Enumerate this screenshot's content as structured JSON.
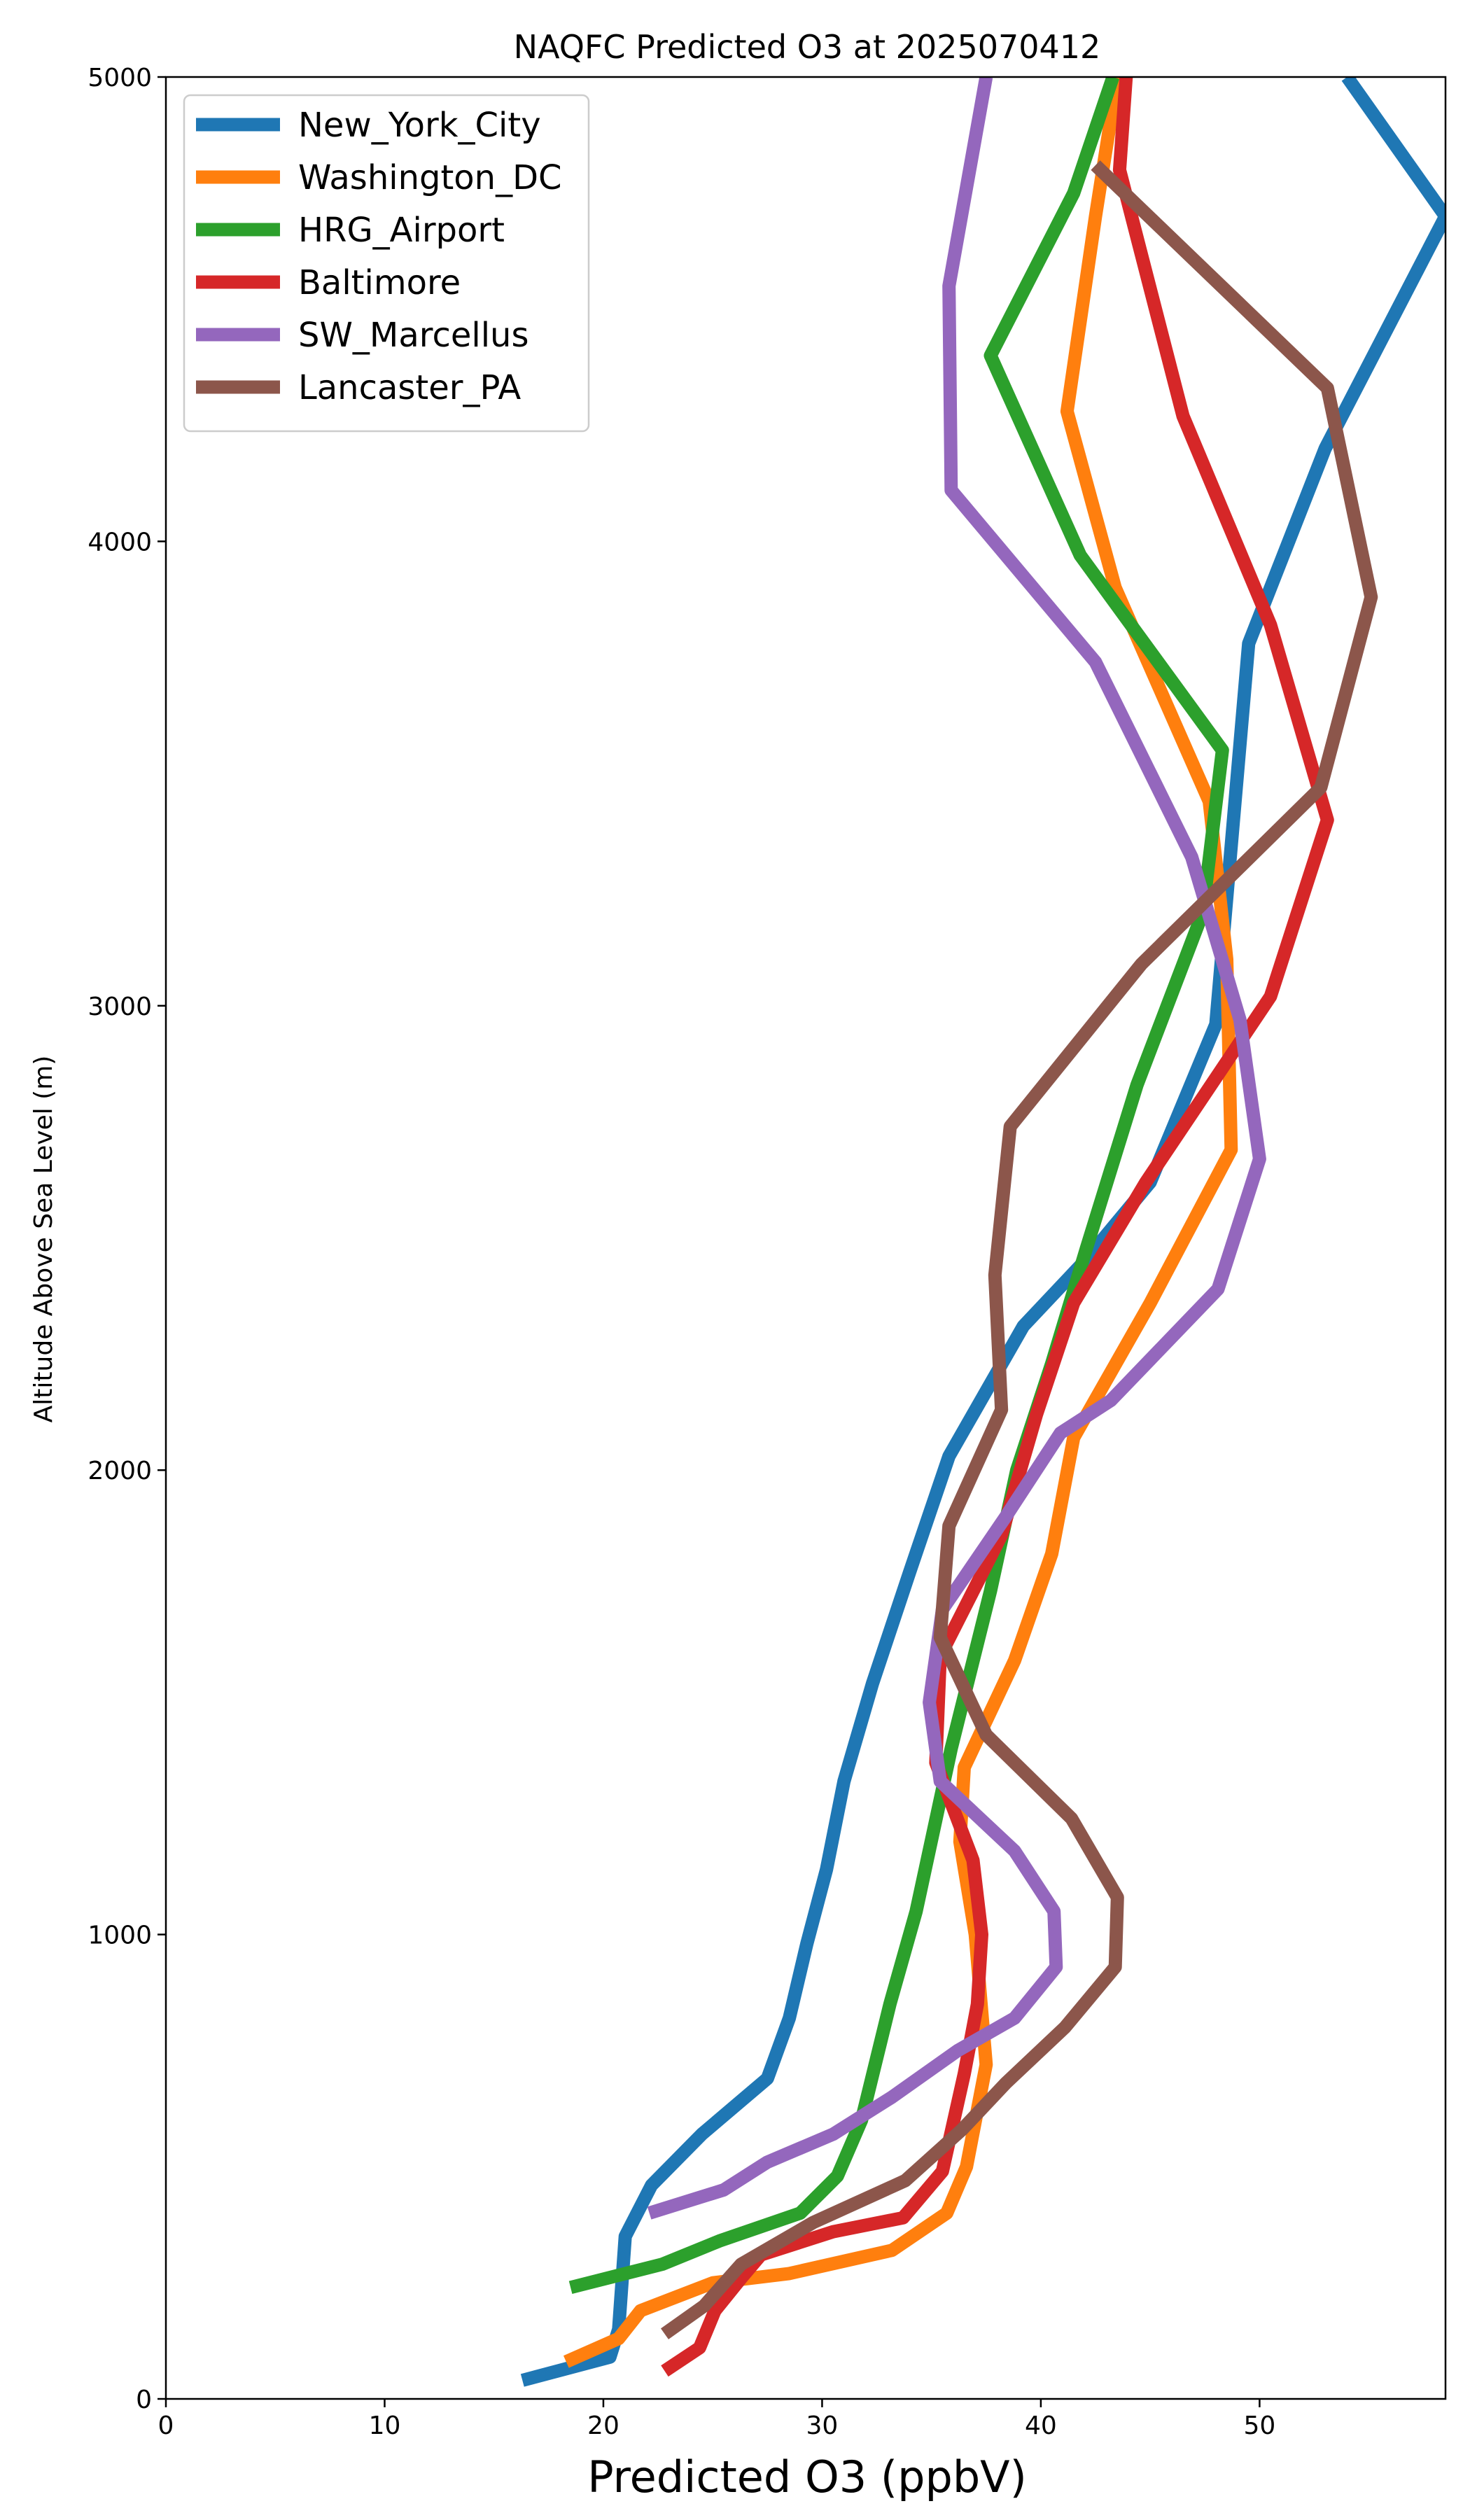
{
  "chart_data": {
    "type": "line",
    "title": "NAQFC Predicted O3 at 2025070412",
    "xlabel": "Predicted O3 (ppbV)",
    "ylabel": "Altitude Above Sea Level (m)",
    "xlim": [
      0,
      58.5
    ],
    "ylim": [
      0,
      5000
    ],
    "xticks": [
      0,
      10,
      20,
      30,
      40,
      50
    ],
    "yticks": [
      0,
      1000,
      2000,
      3000,
      4000,
      5000
    ],
    "grid": false,
    "legend_position": "upper-left",
    "series": [
      {
        "name": "New_York_City",
        "color": "#1f77b4",
        "points": [
          [
            16.3,
            40
          ],
          [
            20.3,
            90
          ],
          [
            20.7,
            150
          ],
          [
            21,
            350
          ],
          [
            22.2,
            460
          ],
          [
            24.5,
            570
          ],
          [
            27.5,
            690
          ],
          [
            28.5,
            820
          ],
          [
            29.3,
            980
          ],
          [
            30.2,
            1140
          ],
          [
            31,
            1330
          ],
          [
            32.3,
            1540
          ],
          [
            34,
            1780
          ],
          [
            35.8,
            2030
          ],
          [
            39.2,
            2310
          ],
          [
            42,
            2450
          ],
          [
            45,
            2620
          ],
          [
            48,
            2960
          ],
          [
            49.5,
            3780
          ],
          [
            53,
            4200
          ],
          [
            58.5,
            4700
          ],
          [
            54,
            5000
          ]
        ]
      },
      {
        "name": "Washington_DC",
        "color": "#ff7f0e",
        "points": [
          [
            18.3,
            80
          ],
          [
            20.7,
            130
          ],
          [
            21.7,
            190
          ],
          [
            25,
            250
          ],
          [
            28.5,
            270
          ],
          [
            33.2,
            320
          ],
          [
            35.7,
            400
          ],
          [
            36.6,
            500
          ],
          [
            37.5,
            720
          ],
          [
            37,
            1000
          ],
          [
            36.3,
            1200
          ],
          [
            36.5,
            1360
          ],
          [
            38.8,
            1590
          ],
          [
            40.5,
            1820
          ],
          [
            41.5,
            2070
          ],
          [
            45,
            2360
          ],
          [
            48.7,
            2690
          ],
          [
            48.5,
            3100
          ],
          [
            47.7,
            3440
          ],
          [
            43.4,
            3900
          ],
          [
            41.2,
            4280
          ],
          [
            42.5,
            4700
          ],
          [
            43.5,
            5000
          ]
        ]
      },
      {
        "name": "HRG_Airport",
        "color": "#2ca02c",
        "points": [
          [
            18.5,
            240
          ],
          [
            22.7,
            290
          ],
          [
            25.3,
            340
          ],
          [
            29,
            400
          ],
          [
            30.7,
            480
          ],
          [
            31.8,
            600
          ],
          [
            33.1,
            850
          ],
          [
            34.3,
            1050
          ],
          [
            35.9,
            1400
          ],
          [
            37.7,
            1740
          ],
          [
            38.9,
            2000
          ],
          [
            40.5,
            2230
          ],
          [
            42.1,
            2480
          ],
          [
            44.4,
            2830
          ],
          [
            47.4,
            3200
          ],
          [
            48.3,
            3550
          ],
          [
            41.8,
            3970
          ],
          [
            37.7,
            4400
          ],
          [
            41.5,
            4750
          ],
          [
            43.3,
            5000
          ]
        ]
      },
      {
        "name": "Baltimore",
        "color": "#d62728",
        "points": [
          [
            22.8,
            60
          ],
          [
            24.4,
            110
          ],
          [
            25.1,
            190
          ],
          [
            26.3,
            260
          ],
          [
            27.2,
            310
          ],
          [
            30.5,
            360
          ],
          [
            33.7,
            390
          ],
          [
            35.5,
            490
          ],
          [
            36.5,
            700
          ],
          [
            37.1,
            850
          ],
          [
            37.3,
            1000
          ],
          [
            36.9,
            1160
          ],
          [
            35.2,
            1370
          ],
          [
            35.4,
            1600
          ],
          [
            38.2,
            1860
          ],
          [
            39.8,
            2120
          ],
          [
            41.5,
            2360
          ],
          [
            44.8,
            2620
          ],
          [
            50.5,
            3020
          ],
          [
            53.1,
            3400
          ],
          [
            50.5,
            3820
          ],
          [
            46.5,
            4270
          ],
          [
            43.6,
            4800
          ],
          [
            43.9,
            5000
          ]
        ]
      },
      {
        "name": "SW_Marcellus",
        "color": "#9467bd",
        "points": [
          [
            22.1,
            400
          ],
          [
            25.5,
            450
          ],
          [
            27.5,
            510
          ],
          [
            30.5,
            570
          ],
          [
            33.2,
            650
          ],
          [
            36.2,
            750
          ],
          [
            38.8,
            820
          ],
          [
            40.7,
            930
          ],
          [
            40.6,
            1050
          ],
          [
            38.8,
            1180
          ],
          [
            35.4,
            1330
          ],
          [
            34.9,
            1500
          ],
          [
            35.5,
            1700
          ],
          [
            38.4,
            1900
          ],
          [
            40.9,
            2080
          ],
          [
            43.2,
            2150
          ],
          [
            48.1,
            2390
          ],
          [
            50,
            2670
          ],
          [
            49.1,
            2970
          ],
          [
            46.9,
            3320
          ],
          [
            42.5,
            3740
          ],
          [
            35.9,
            4110
          ],
          [
            35.8,
            4550
          ],
          [
            37.5,
            5000
          ]
        ]
      },
      {
        "name": "Lancaster_PA",
        "color": "#8c564b",
        "points": [
          [
            22.8,
            140
          ],
          [
            24.6,
            200
          ],
          [
            26.3,
            290
          ],
          [
            29.6,
            380
          ],
          [
            33.8,
            470
          ],
          [
            36.4,
            580
          ],
          [
            38.4,
            680
          ],
          [
            41.1,
            800
          ],
          [
            43.4,
            930
          ],
          [
            43.5,
            1080
          ],
          [
            41.4,
            1250
          ],
          [
            37.5,
            1430
          ],
          [
            35.4,
            1640
          ],
          [
            35.8,
            1880
          ],
          [
            38.2,
            2130
          ],
          [
            37.9,
            2420
          ],
          [
            38.6,
            2740
          ],
          [
            44.6,
            3090
          ],
          [
            52.8,
            3470
          ],
          [
            55.1,
            3880
          ],
          [
            53.1,
            4330
          ],
          [
            42.5,
            4810
          ]
        ]
      }
    ]
  }
}
